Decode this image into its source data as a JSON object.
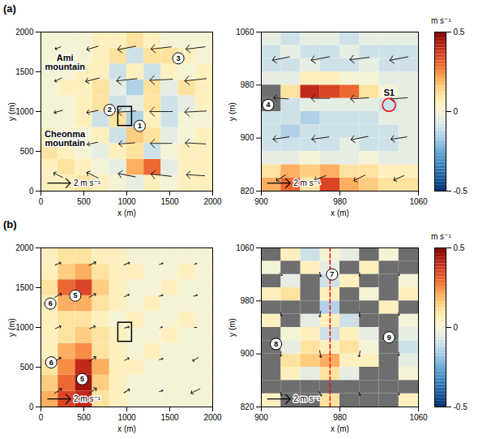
{
  "chart_data": [
    {
      "type": "vector_field",
      "title": "(a)",
      "x_label": "x (m)",
      "y_label": "y (m)",
      "xlim": [
        0,
        2000
      ],
      "ylim": [
        0,
        2000
      ],
      "xticks": [
        0,
        500,
        1000,
        1500,
        2000
      ],
      "yticks": [
        0,
        500,
        1000,
        1500,
        2000
      ],
      "inset": true,
      "w_cells": [
        [
          0.05,
          0.05,
          0.1,
          0.05,
          0.0,
          -0.05,
          0.05,
          0.0,
          0.05,
          0.05
        ],
        [
          0.05,
          0.1,
          0.05,
          0.0,
          -0.05,
          0.2,
          0.3,
          -0.05,
          0.05,
          0.05
        ],
        [
          0.1,
          0.05,
          0.0,
          -0.05,
          0.05,
          0.1,
          -0.1,
          0.0,
          0.05,
          0.05
        ],
        [
          0.05,
          0.0,
          0.0,
          0.05,
          -0.1,
          0.15,
          0.1,
          -0.05,
          0.0,
          0.05
        ],
        [
          0.0,
          0.0,
          0.05,
          -0.1,
          0.1,
          -0.15,
          0.05,
          -0.1,
          0.0,
          0.0
        ],
        [
          0.0,
          0.0,
          0.05,
          0.1,
          -0.1,
          -0.05,
          0.1,
          -0.1,
          -0.05,
          0.05
        ],
        [
          0.0,
          0.05,
          0.05,
          0.1,
          -0.05,
          -0.15,
          0.1,
          -0.05,
          0.1,
          0.05
        ],
        [
          0.0,
          0.0,
          0.05,
          0.05,
          -0.1,
          0.05,
          -0.1,
          0.05,
          0.0,
          0.05
        ],
        [
          0.0,
          0.0,
          0.0,
          0.05,
          0.1,
          -0.1,
          0.1,
          0.1,
          0.05,
          0.0
        ],
        [
          0.0,
          0.0,
          0.0,
          0.05,
          0.05,
          0.1,
          0.05,
          0.0,
          0.0,
          0.0
        ]
      ],
      "vectors": {
        "x": [
          200,
          600,
          1000,
          1400,
          1800
        ],
        "y": [
          200,
          600,
          1000,
          1400,
          1800
        ],
        "u": [
          [
            -0.8,
            -1.0,
            -1.5,
            -1.8,
            -1.6
          ],
          [
            -0.6,
            -0.9,
            -1.4,
            -1.9,
            -1.8
          ],
          [
            -0.7,
            -1.0,
            -1.6,
            -2.0,
            -1.9
          ],
          [
            -0.6,
            -1.2,
            -1.8,
            -2.0,
            -1.9
          ],
          [
            -0.5,
            -1.0,
            -1.6,
            -1.8,
            -1.7
          ]
        ],
        "v": [
          [
            0.4,
            0.5,
            0.3,
            0.2,
            0.1
          ],
          [
            -0.3,
            -0.2,
            -0.1,
            0.0,
            0.1
          ],
          [
            -0.2,
            -0.2,
            -0.1,
            0.0,
            -0.1
          ],
          [
            -0.3,
            -0.3,
            -0.2,
            -0.1,
            -0.2
          ],
          [
            -0.2,
            -0.3,
            -0.3,
            -0.2,
            -0.2
          ]
        ]
      },
      "reference_vector": {
        "value": 2,
        "label": "2 m s⁻¹"
      },
      "annotations": [
        {
          "label": "Ami mountain",
          "x": 280,
          "y": 1620
        },
        {
          "label": "Cheonma mountain",
          "x": 280,
          "y": 660
        },
        {
          "label": "1",
          "x": 1150,
          "y": 820,
          "marker": "circled"
        },
        {
          "label": "2",
          "x": 800,
          "y": 1020,
          "marker": "circled"
        },
        {
          "label": "3",
          "x": 1600,
          "y": 1670,
          "marker": "circled"
        }
      ]
    },
    {
      "type": "vector_field",
      "x_label": "x (m)",
      "y_label": "y (m)",
      "xlim": [
        900,
        1060
      ],
      "ylim": [
        820,
        1060
      ],
      "xticks": [
        900,
        980,
        1060
      ],
      "yticks": [
        820,
        900,
        980,
        1060
      ],
      "w_cells": [
        [
          0.2,
          0.3,
          0.1,
          0.35,
          0.2,
          0.15,
          0.1,
          0.1
        ],
        [
          0.1,
          0.2,
          0.15,
          0.2,
          0.1,
          0.1,
          0.05,
          0.05
        ],
        [
          -0.05,
          -0.05,
          0.0,
          -0.05,
          -0.05,
          0.0,
          -0.05,
          -0.05
        ],
        [
          -0.1,
          -0.1,
          -0.1,
          -0.1,
          -0.05,
          -0.1,
          -0.1,
          -0.05
        ],
        [
          -0.1,
          -0.15,
          -0.1,
          -0.1,
          -0.1,
          -0.1,
          -0.1,
          -0.05
        ],
        [
          -0.1,
          -0.1,
          -0.15,
          -0.1,
          -0.1,
          -0.1,
          -0.05,
          -0.05
        ],
        [
          null,
          -0.1,
          -0.05,
          -0.05,
          -0.05,
          -0.05,
          -0.1,
          -0.05
        ],
        [
          null,
          0.1,
          0.4,
          0.35,
          0.3,
          0.1,
          0.0,
          -0.05
        ],
        [
          -0.05,
          -0.05,
          0.05,
          0.05,
          0.0,
          0.0,
          -0.05,
          -0.05
        ],
        [
          -0.1,
          -0.1,
          -0.05,
          -0.1,
          -0.1,
          -0.05,
          -0.1,
          -0.1
        ],
        [
          -0.1,
          -0.05,
          -0.1,
          -0.1,
          -0.05,
          -0.1,
          -0.1,
          -0.1
        ],
        [
          -0.05,
          -0.1,
          -0.05,
          -0.05,
          -0.1,
          -0.05,
          -0.05,
          -0.05
        ]
      ],
      "vectors": {
        "x": [
          920,
          960,
          1000,
          1040
        ],
        "y": [
          840,
          900,
          960,
          1020
        ],
        "u": [
          [
            -0.8,
            -1.0,
            -1.0,
            -0.9
          ],
          [
            -1.4,
            -1.5,
            -1.5,
            -1.4
          ],
          [
            -1.3,
            -1.6,
            -1.6,
            -1.5
          ],
          [
            -1.5,
            -1.6,
            -1.7,
            -1.6
          ]
        ],
        "v": [
          [
            -0.5,
            -0.4,
            -0.5,
            -0.4
          ],
          [
            -0.2,
            -0.2,
            -0.3,
            -0.2
          ],
          [
            0.1,
            0.0,
            -0.1,
            -0.1
          ],
          [
            -0.3,
            -0.3,
            -0.2,
            -0.3
          ]
        ]
      },
      "reference_vector": {
        "value": 2,
        "label": "2 m s⁻¹"
      },
      "annotations": [
        {
          "label": "4",
          "x": 907,
          "y": 950,
          "marker": "circled"
        },
        {
          "label": "S1",
          "x": 1030,
          "y": 950,
          "marker": "circle",
          "color": "red"
        }
      ],
      "colorbar": {
        "lim": [
          -0.5,
          0.5
        ],
        "ticks": [
          -0.5,
          0,
          0.5
        ],
        "label": "m s⁻¹"
      }
    },
    {
      "type": "vector_field",
      "title": "(b)",
      "x_label": "x (m)",
      "y_label": "y (m)",
      "xlim": [
        0,
        2000
      ],
      "ylim": [
        0,
        2000
      ],
      "xticks": [
        0,
        500,
        1000,
        1500,
        2000
      ],
      "yticks": [
        0,
        500,
        1000,
        1500,
        2000
      ],
      "inset": true,
      "w_cells": [
        [
          0.2,
          0.35,
          0.4,
          0.1,
          0.05,
          0.0,
          0.0,
          0.0,
          0.0,
          0.0
        ],
        [
          0.15,
          0.3,
          0.45,
          0.15,
          0.05,
          0.0,
          0.0,
          0.0,
          0.0,
          0.0
        ],
        [
          0.1,
          0.25,
          0.4,
          0.2,
          0.05,
          0.05,
          0.0,
          0.0,
          0.0,
          0.0
        ],
        [
          0.05,
          0.2,
          0.25,
          0.1,
          0.05,
          0.0,
          0.05,
          0.0,
          0.0,
          0.0
        ],
        [
          0.05,
          0.1,
          0.15,
          0.1,
          0.05,
          0.0,
          0.0,
          0.05,
          0.0,
          0.0
        ],
        [
          0.05,
          0.1,
          0.1,
          0.05,
          0.0,
          0.05,
          0.0,
          0.0,
          0.05,
          0.0
        ],
        [
          0.05,
          0.2,
          0.2,
          0.1,
          0.05,
          0.0,
          0.05,
          0.0,
          0.0,
          0.0
        ],
        [
          0.1,
          0.3,
          0.35,
          0.15,
          0.05,
          0.0,
          0.0,
          0.05,
          0.0,
          0.0
        ],
        [
          0.05,
          0.15,
          0.2,
          0.1,
          0.05,
          0.05,
          0.0,
          0.0,
          0.05,
          0.0
        ],
        [
          0.05,
          0.1,
          0.1,
          0.05,
          0.05,
          0.0,
          0.0,
          0.0,
          0.0,
          0.0
        ]
      ],
      "vectors": {
        "x": [
          200,
          600,
          1000,
          1400,
          1800
        ],
        "y": [
          200,
          600,
          1000,
          1400,
          1800
        ],
        "u": [
          [
            0.6,
            0.7,
            0.5,
            0.3,
            -0.8
          ],
          [
            0.5,
            0.6,
            0.4,
            0.3,
            -0.5
          ],
          [
            0.5,
            0.5,
            0.4,
            0.2,
            0.2
          ],
          [
            0.6,
            0.6,
            0.4,
            0.3,
            0.3
          ],
          [
            0.5,
            0.6,
            0.5,
            0.3,
            0.2
          ]
        ],
        "v": [
          [
            0.4,
            0.5,
            0.3,
            0.1,
            -0.4
          ],
          [
            0.3,
            0.4,
            0.2,
            0.1,
            -0.3
          ],
          [
            0.2,
            0.2,
            0.1,
            0.1,
            0.0
          ],
          [
            0.3,
            0.3,
            0.2,
            0.1,
            0.1
          ],
          [
            0.2,
            0.3,
            0.2,
            0.1,
            0.1
          ]
        ]
      },
      "reference_vector": {
        "value": 2,
        "label": "2 m s⁻¹"
      },
      "annotations": [
        {
          "label": "5",
          "x": 400,
          "y": 1400,
          "marker": "circled"
        },
        {
          "label": "6",
          "x": 110,
          "y": 1300,
          "marker": "circled"
        },
        {
          "label": "6",
          "x": 120,
          "y": 560,
          "marker": "circled"
        },
        {
          "label": "5",
          "x": 480,
          "y": 350,
          "marker": "circled"
        }
      ]
    },
    {
      "type": "vector_field",
      "x_label": "x (m)",
      "y_label": "y (m)",
      "xlim": [
        900,
        1060
      ],
      "ylim": [
        820,
        1060
      ],
      "xticks": [
        900,
        980,
        1060
      ],
      "yticks": [
        820,
        900,
        980,
        1060
      ],
      "w_cells": [
        [
          0.05,
          null,
          null,
          0.1,
          null,
          null,
          null,
          0.05
        ],
        [
          null,
          null,
          null,
          null,
          null,
          null,
          null,
          null
        ],
        [
          null,
          0.05,
          -0.05,
          0.1,
          -0.05,
          null,
          null,
          0.0
        ],
        [
          null,
          0.1,
          0.15,
          0.2,
          0.05,
          0.05,
          null,
          -0.05
        ],
        [
          null,
          -0.05,
          0.1,
          0.05,
          0.1,
          0.0,
          null,
          -0.1
        ],
        [
          null,
          0.0,
          0.05,
          -0.1,
          0.05,
          -0.05,
          null,
          -0.05
        ],
        [
          0.05,
          null,
          -0.05,
          0.05,
          -0.1,
          null,
          null,
          0.0
        ],
        [
          null,
          null,
          null,
          -0.15,
          null,
          null,
          0.05,
          null
        ],
        [
          0.05,
          0.1,
          null,
          0.05,
          null,
          0.0,
          null,
          0.05
        ],
        [
          null,
          -0.05,
          null,
          -0.1,
          0.05,
          null,
          null,
          0.0
        ],
        [
          0.0,
          null,
          0.05,
          -0.05,
          null,
          0.05,
          null,
          null
        ],
        [
          null,
          0.05,
          -0.1,
          0.0,
          -0.05,
          null,
          0.0,
          null
        ]
      ],
      "vectors": {
        "x": [
          920,
          960,
          1000,
          1040
        ],
        "y": [
          840,
          900,
          960,
          1020
        ],
        "u": [
          [
            0.1,
            0.2,
            0.1,
            0.1
          ],
          [
            0.0,
            0.1,
            -0.1,
            0.0
          ],
          [
            0.1,
            -0.1,
            0.0,
            0.1
          ],
          [
            0.2,
            0.1,
            0.0,
            0.1
          ]
        ],
        "v": [
          [
            -0.3,
            -0.4,
            -0.3,
            -0.2
          ],
          [
            -0.4,
            -0.6,
            -0.5,
            -0.3
          ],
          [
            -0.3,
            -0.5,
            -0.4,
            -0.2
          ],
          [
            -0.2,
            -0.4,
            -0.3,
            -0.2
          ]
        ]
      },
      "reference_vector": {
        "value": 2,
        "label": "2 m s⁻¹"
      },
      "lines": [
        {
          "x": [
            970,
            970
          ],
          "y": [
            820,
            1060
          ],
          "color": "red",
          "line_style": "dashed"
        }
      ],
      "annotations": [
        {
          "label": "7",
          "x": 972,
          "y": 1020,
          "marker": "circled"
        },
        {
          "label": "8",
          "x": 915,
          "y": 915,
          "marker": "circled"
        },
        {
          "label": "9",
          "x": 1030,
          "y": 925,
          "marker": "circled"
        }
      ],
      "colorbar": {
        "lim": [
          -0.5,
          0.5
        ],
        "ticks": [
          -0.5,
          0,
          0.5
        ],
        "label": "m s⁻¹"
      }
    }
  ]
}
